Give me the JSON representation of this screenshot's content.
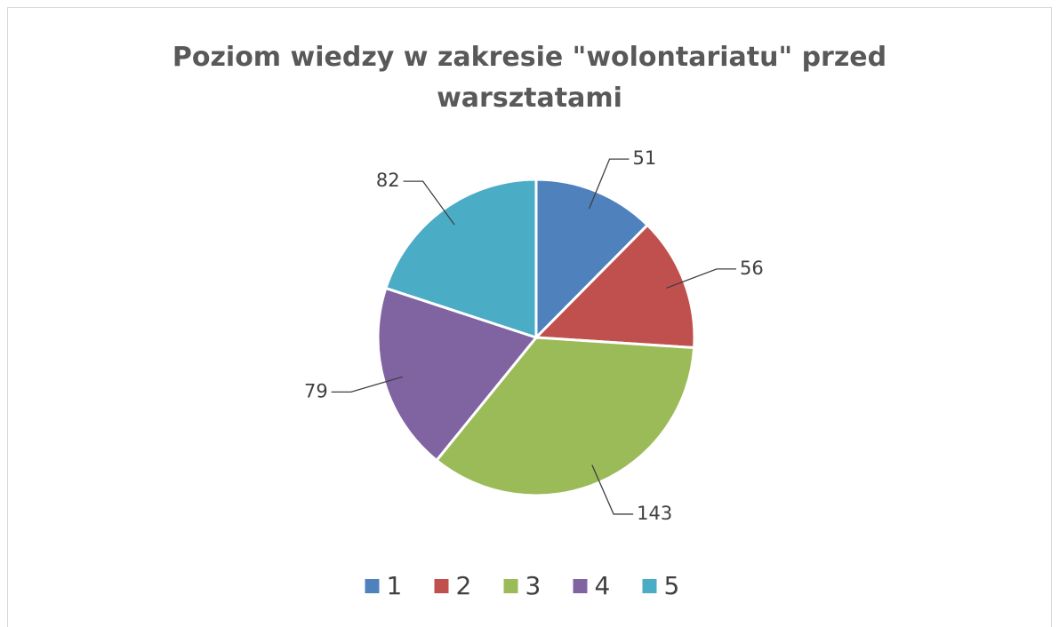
{
  "chart_data": {
    "type": "pie",
    "title": "Poziom wiedzy w zakresie \"wolontariatu\" przed warsztatami",
    "categories": [
      "1",
      "2",
      "3",
      "4",
      "5"
    ],
    "values": [
      51,
      56,
      143,
      79,
      82
    ],
    "colors": [
      "#4f81bd",
      "#c0504d",
      "#9bbb59",
      "#8064a2",
      "#4bacc6"
    ],
    "legend": "bottom"
  }
}
